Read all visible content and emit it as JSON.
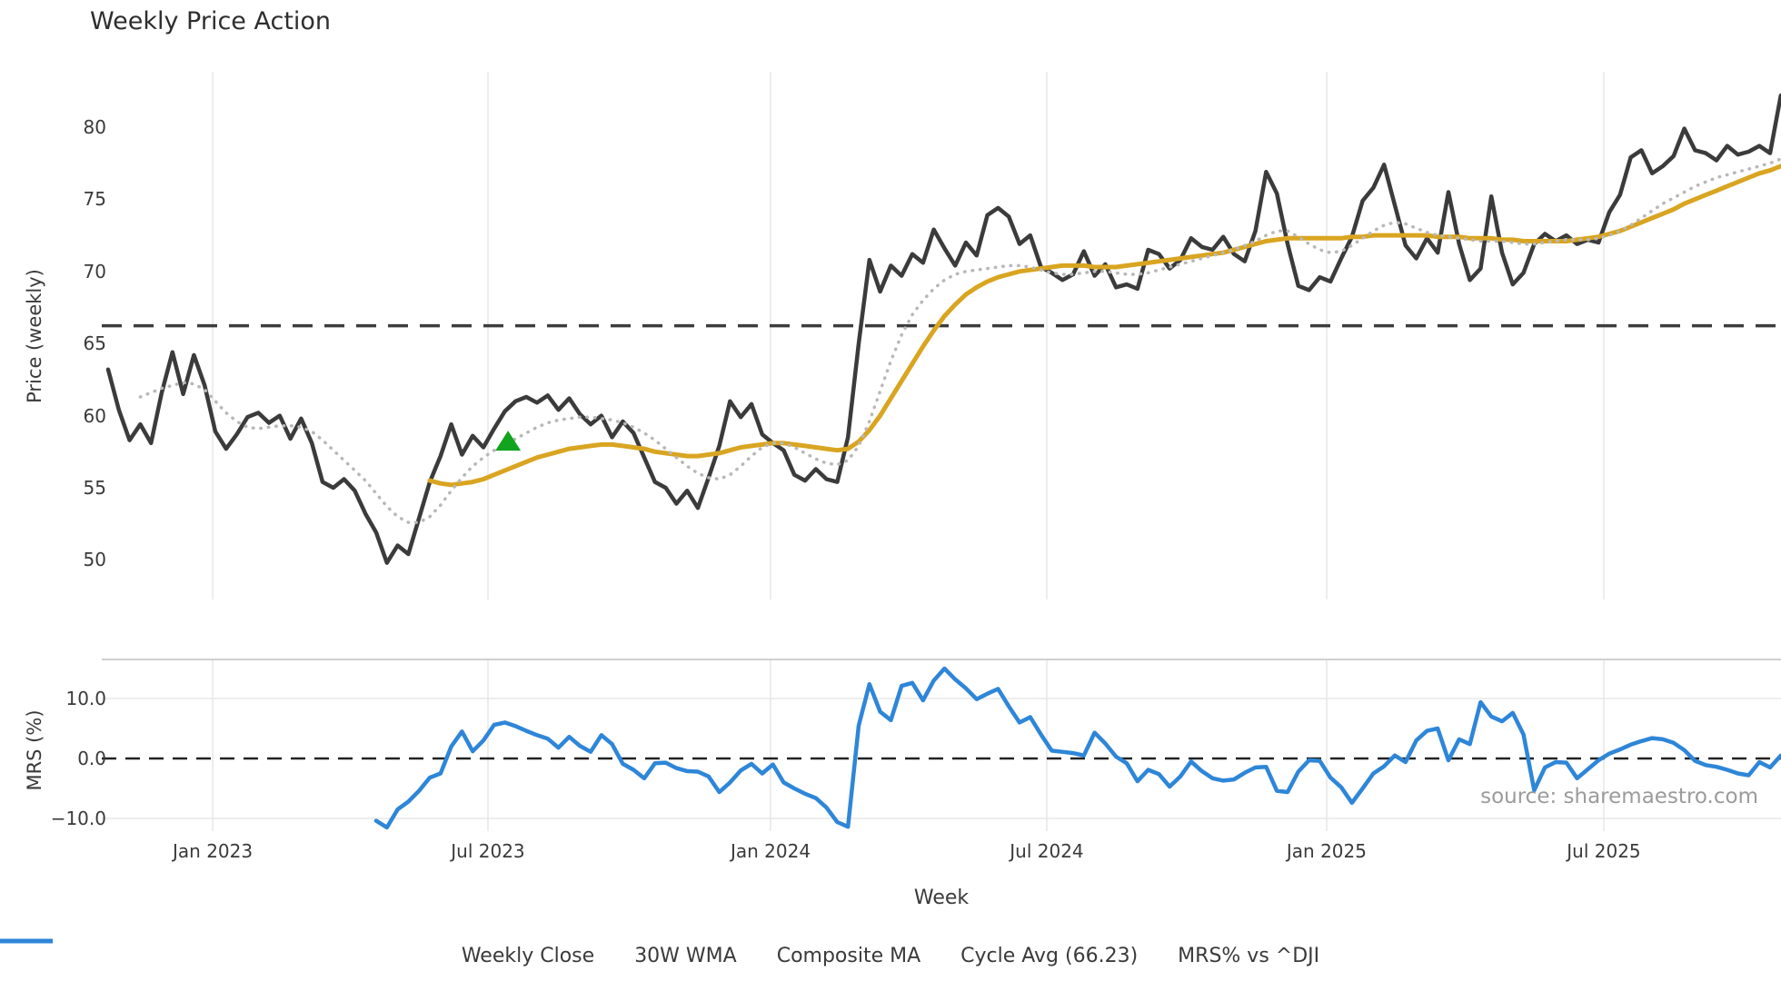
{
  "title": "Weekly Price Action",
  "xlabel": "Week",
  "source_note": "source: sharemaestro.com",
  "colors": {
    "weekly_close": "#3b3b3b",
    "wma_30w": "#d9a521",
    "composite_ma": "#b8b8b8",
    "cycle_avg": "#3d3d3d",
    "mrs_line": "#2e86d8",
    "signal_marker": "#12a41e",
    "gridline": "#e7e7e7",
    "panel_border": "#cfcfcf",
    "text": "#3a3a3a",
    "source_text": "#9b9b9b",
    "background": "#ffffff"
  },
  "legend": [
    {
      "label": "Weekly Close",
      "style": "solid",
      "color": "#3b3b3b"
    },
    {
      "label": "30W WMA",
      "style": "solid",
      "color": "#d9a521"
    },
    {
      "label": "Composite MA",
      "style": "dotted",
      "color": "#b8b8b8"
    },
    {
      "label": "Cycle Avg (66.23)",
      "style": "dashed",
      "color": "#3b3b3b"
    },
    {
      "label": "MRS% vs ^DJI",
      "style": "solid",
      "color": "#2e86d8"
    }
  ],
  "chart_data": [
    {
      "type": "line",
      "panel": "price",
      "title": "Weekly Price Action",
      "xlabel": "Week",
      "ylabel": "Price (weekly)",
      "yticks": [
        50,
        55,
        60,
        65,
        70,
        75,
        80
      ],
      "ylim": [
        47.3,
        83.8
      ],
      "grid": "vertical-only",
      "xticks": [
        {
          "week": 9.75,
          "label": "Jan 2023"
        },
        {
          "week": 35.42,
          "label": "Jul 2023"
        },
        {
          "week": 61.78,
          "label": "Jan 2024"
        },
        {
          "week": 87.54,
          "label": "Jul 2024"
        },
        {
          "week": 113.64,
          "label": "Jan 2025"
        },
        {
          "week": 139.49,
          "label": "Jul 2025"
        }
      ],
      "cycle_avg": 66.23,
      "marker": {
        "name": "buy-signal-triangle",
        "shape": "triangle-up",
        "color": "#12a41e",
        "week": 37.3,
        "value": 58.2
      },
      "series": [
        {
          "name": "Weekly Close",
          "color": "#3b3b3b",
          "style": "solid",
          "start_week": 0,
          "values": [
            63.2,
            60.4,
            58.3,
            59.4,
            58.1,
            61.6,
            64.4,
            61.5,
            64.2,
            62.1,
            58.9,
            57.7,
            58.7,
            59.9,
            60.2,
            59.5,
            60.0,
            58.4,
            59.8,
            58.1,
            55.4,
            55.0,
            55.6,
            54.8,
            53.2,
            51.9,
            49.8,
            51.0,
            50.4,
            52.9,
            55.4,
            57.2,
            59.4,
            57.3,
            58.6,
            57.8,
            59.1,
            60.3,
            61.0,
            61.3,
            60.9,
            61.4,
            60.4,
            61.2,
            60.1,
            59.4,
            60.0,
            58.5,
            59.6,
            58.8,
            57.1,
            55.4,
            55.0,
            53.9,
            54.8,
            53.6,
            55.7,
            57.9,
            61.0,
            59.9,
            60.8,
            58.7,
            58.1,
            57.6,
            55.9,
            55.5,
            56.3,
            55.6,
            55.4,
            58.5,
            65.0,
            70.8,
            68.6,
            70.4,
            69.7,
            71.2,
            70.6,
            72.9,
            71.6,
            70.4,
            72.0,
            71.1,
            73.9,
            74.4,
            73.8,
            71.9,
            72.5,
            70.3,
            69.9,
            69.4,
            69.8,
            71.4,
            69.7,
            70.5,
            68.9,
            69.1,
            68.8,
            71.5,
            71.2,
            70.2,
            70.8,
            72.3,
            71.7,
            71.5,
            72.4,
            71.2,
            70.7,
            72.8,
            76.9,
            75.4,
            71.9,
            69.0,
            68.7,
            69.6,
            69.3,
            70.9,
            72.4,
            74.9,
            75.8,
            77.4,
            74.6,
            71.8,
            70.9,
            72.3,
            71.3,
            75.5,
            71.9,
            69.4,
            70.2,
            75.2,
            71.3,
            69.1,
            69.9,
            71.9,
            72.6,
            72.1,
            72.5,
            71.9,
            72.2,
            72.0,
            74.1,
            75.3,
            77.9,
            78.4,
            76.8,
            77.3,
            78.0,
            79.9,
            78.4,
            78.2,
            77.7,
            78.7,
            78.1,
            78.3,
            78.7,
            78.2,
            82.2
          ]
        },
        {
          "name": "30W WMA",
          "color": "#d9a521",
          "style": "solid",
          "start_week": 30,
          "values": [
            55.5,
            55.3,
            55.2,
            55.3,
            55.4,
            55.6,
            55.9,
            56.2,
            56.5,
            56.8,
            57.1,
            57.3,
            57.5,
            57.7,
            57.8,
            57.9,
            58.0,
            58.0,
            57.9,
            57.8,
            57.7,
            57.5,
            57.4,
            57.3,
            57.2,
            57.2,
            57.3,
            57.4,
            57.6,
            57.8,
            57.9,
            58.0,
            58.1,
            58.1,
            58.0,
            57.9,
            57.8,
            57.7,
            57.6,
            57.7,
            58.2,
            59.0,
            60.0,
            61.2,
            62.4,
            63.6,
            64.8,
            65.9,
            66.9,
            67.7,
            68.4,
            68.9,
            69.3,
            69.6,
            69.8,
            70.0,
            70.1,
            70.2,
            70.3,
            70.4,
            70.4,
            70.4,
            70.3,
            70.3,
            70.3,
            70.4,
            70.5,
            70.6,
            70.7,
            70.8,
            70.9,
            71.0,
            71.1,
            71.2,
            71.3,
            71.5,
            71.7,
            71.9,
            72.1,
            72.2,
            72.3,
            72.3,
            72.3,
            72.3,
            72.3,
            72.3,
            72.4,
            72.4,
            72.5,
            72.5,
            72.5,
            72.5,
            72.5,
            72.5,
            72.4,
            72.4,
            72.4,
            72.3,
            72.3,
            72.3,
            72.2,
            72.2,
            72.1,
            72.1,
            72.1,
            72.1,
            72.1,
            72.2,
            72.3,
            72.4,
            72.6,
            72.8,
            73.1,
            73.4,
            73.7,
            74.0,
            74.3,
            74.7,
            75.0,
            75.3,
            75.6,
            75.9,
            76.2,
            76.5,
            76.8,
            77.0,
            77.3
          ]
        },
        {
          "name": "Composite MA",
          "color": "#b8b8b8",
          "style": "dotted",
          "start_week": 3,
          "values": [
            61.3,
            61.6,
            61.9,
            62.1,
            62.3,
            62.2,
            61.8,
            61.0,
            60.2,
            59.6,
            59.2,
            59.1,
            59.2,
            59.3,
            59.3,
            59.2,
            58.9,
            58.3,
            57.6,
            56.9,
            56.2,
            55.5,
            54.6,
            53.7,
            53.0,
            52.6,
            52.6,
            53.0,
            53.8,
            54.8,
            55.7,
            56.5,
            57.1,
            57.6,
            58.0,
            58.4,
            58.8,
            59.2,
            59.5,
            59.7,
            59.8,
            59.9,
            59.9,
            59.8,
            59.7,
            59.5,
            59.2,
            58.8,
            58.3,
            57.7,
            57.1,
            56.5,
            56.0,
            55.7,
            55.6,
            55.9,
            56.5,
            57.2,
            57.8,
            58.1,
            58.1,
            57.8,
            57.4,
            57.0,
            56.7,
            56.6,
            56.9,
            57.9,
            59.6,
            61.7,
            63.8,
            65.6,
            67.0,
            68.0,
            68.8,
            69.4,
            69.8,
            70.0,
            70.1,
            70.2,
            70.3,
            70.4,
            70.4,
            70.3,
            70.1,
            69.9,
            69.8,
            69.8,
            69.9,
            70.0,
            70.0,
            69.9,
            69.8,
            69.8,
            69.9,
            70.1,
            70.3,
            70.5,
            70.7,
            70.9,
            71.1,
            71.3,
            71.5,
            71.8,
            72.1,
            72.5,
            72.8,
            72.8,
            72.4,
            71.9,
            71.5,
            71.3,
            71.4,
            71.8,
            72.3,
            72.8,
            73.2,
            73.4,
            73.3,
            73.0,
            72.7,
            72.5,
            72.4,
            72.3,
            72.2,
            72.1,
            72.1,
            72.1,
            72.0,
            71.9,
            71.9,
            72.0,
            72.1,
            72.2,
            72.2,
            72.2,
            72.3,
            72.5,
            72.8,
            73.2,
            73.7,
            74.2,
            74.7,
            75.1,
            75.5,
            75.9,
            76.2,
            76.5,
            76.7,
            76.9,
            77.1,
            77.3,
            77.5,
            77.8
          ]
        }
      ]
    },
    {
      "type": "line",
      "panel": "mrs",
      "ylabel": "MRS (%)",
      "yticks": [
        10,
        0,
        -10
      ],
      "ytick_labels": [
        "10.0",
        "0.0",
        "−10.0"
      ],
      "ylim": [
        -12.5,
        16.5
      ],
      "zero_line": 0,
      "series": [
        {
          "name": "MRS% vs ^DJI",
          "color": "#2e86d8",
          "style": "solid",
          "start_week": 25,
          "values": [
            -10.4,
            -11.5,
            -8.5,
            -7.2,
            -5.4,
            -3.2,
            -2.5,
            2.0,
            4.5,
            1.2,
            3.0,
            5.6,
            6.0,
            5.4,
            4.6,
            3.9,
            3.3,
            1.8,
            3.6,
            2.1,
            1.1,
            3.9,
            2.4,
            -0.9,
            -1.9,
            -3.3,
            -0.8,
            -0.7,
            -1.6,
            -2.1,
            -2.2,
            -3.0,
            -5.6,
            -4.0,
            -2.0,
            -0.9,
            -2.5,
            -1.0,
            -4.0,
            -5.0,
            -5.9,
            -6.6,
            -8.2,
            -10.6,
            -11.4,
            5.5,
            12.4,
            7.8,
            6.4,
            12.1,
            12.6,
            9.7,
            13.0,
            15.0,
            13.2,
            11.7,
            9.9,
            10.8,
            11.6,
            8.7,
            6.0,
            6.9,
            4.0,
            1.3,
            1.1,
            0.9,
            0.5,
            4.3,
            2.5,
            0.3,
            -0.8,
            -3.8,
            -1.9,
            -2.6,
            -4.7,
            -3.0,
            -0.5,
            -2.1,
            -3.3,
            -3.7,
            -3.5,
            -2.4,
            -1.5,
            -1.4,
            -5.4,
            -5.6,
            -2.2,
            -0.3,
            -0.4,
            -3.2,
            -4.8,
            -7.4,
            -5.0,
            -2.5,
            -1.3,
            0.5,
            -0.6,
            3.0,
            4.6,
            5.0,
            -0.3,
            3.2,
            2.4,
            9.4,
            7.0,
            6.2,
            7.6,
            4.0,
            -5.3,
            -1.5,
            -0.6,
            -0.7,
            -3.3,
            -1.8,
            -0.3,
            0.8,
            1.5,
            2.3,
            2.9,
            3.4,
            3.2,
            2.6,
            1.4,
            -0.4,
            -1.1,
            -1.4,
            -1.9,
            -2.5,
            -2.8,
            -0.6,
            -1.5,
            0.5
          ]
        }
      ]
    }
  ]
}
